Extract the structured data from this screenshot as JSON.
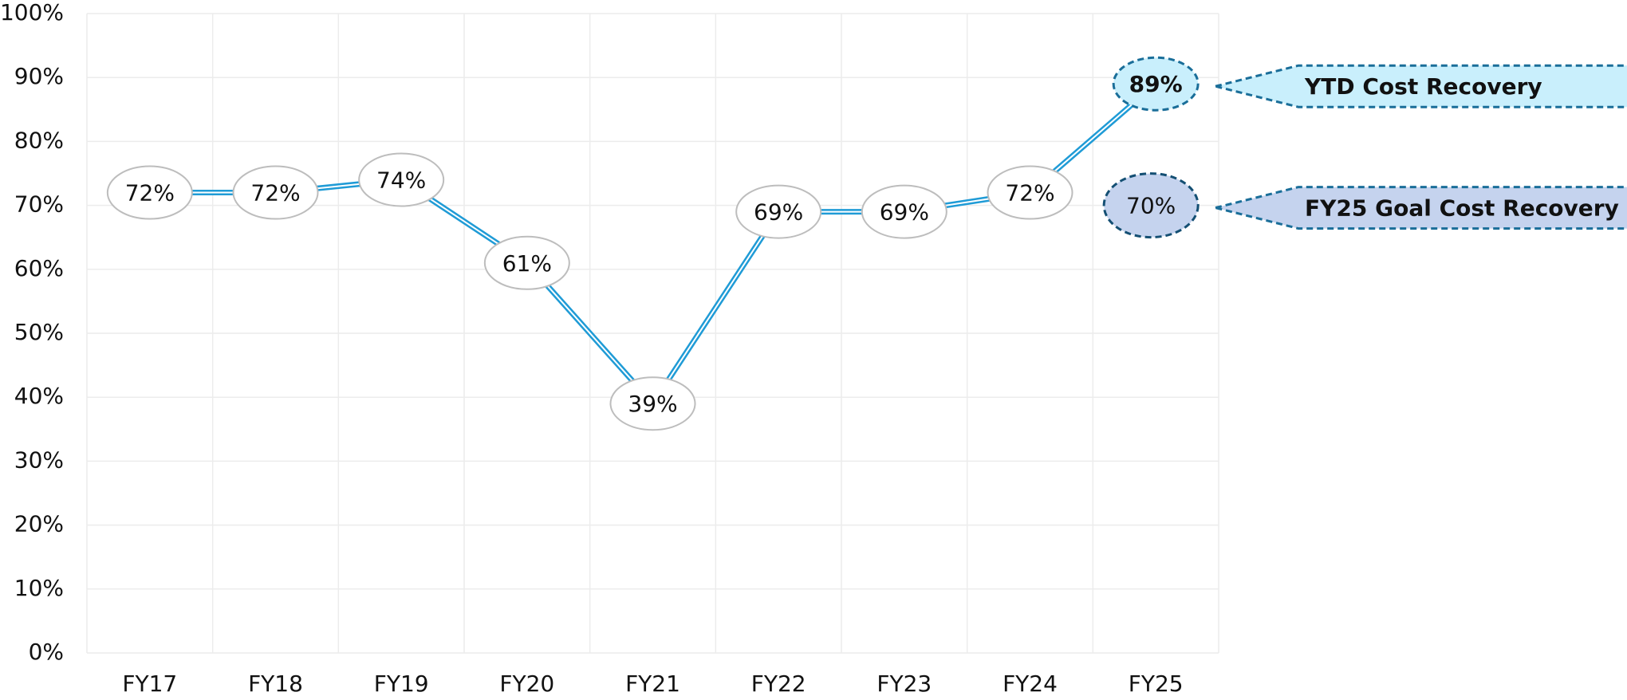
{
  "chart_data": {
    "type": "line",
    "categories": [
      "FY17",
      "FY18",
      "FY19",
      "FY20",
      "FY21",
      "FY22",
      "FY23",
      "FY24",
      "FY25"
    ],
    "values": [
      72,
      72,
      74,
      61,
      39,
      69,
      69,
      72,
      89
    ],
    "value_labels": [
      "72%",
      "72%",
      "74%",
      "61%",
      "39%",
      "69%",
      "69%",
      "72%",
      "89%"
    ],
    "color": "#1f9bd6",
    "goal_value": 70,
    "goal_label": "70%",
    "annotations": [
      "YTD Cost Recovery",
      "FY25 Goal Cost Recovery"
    ],
    "ylim": [
      0,
      100
    ],
    "yticks": [
      {
        "value": 0,
        "label": "0%"
      },
      {
        "value": 10,
        "label": "10%"
      },
      {
        "value": 20,
        "label": "20%"
      },
      {
        "value": 30,
        "label": "30%"
      },
      {
        "value": 40,
        "label": "40%"
      },
      {
        "value": 50,
        "label": "50%"
      },
      {
        "value": 60,
        "label": "60%"
      },
      {
        "value": 70,
        "label": "70%"
      },
      {
        "value": 80,
        "label": "80%"
      },
      {
        "value": 90,
        "label": "90%"
      },
      {
        "value": 100,
        "label": "100%"
      }
    ],
    "grid": true
  }
}
